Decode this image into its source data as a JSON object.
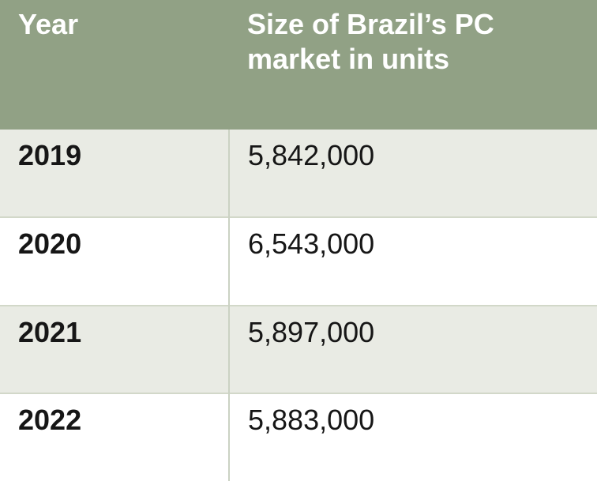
{
  "colors": {
    "header_bg": "#91A185",
    "header_text": "#FFFFFF",
    "row_alt_bg": "#E9EBE4",
    "row_bg": "#FFFFFF",
    "grid_line": "#CBD2C3",
    "body_text": "#161616"
  },
  "table": {
    "headers": [
      "Year",
      "Size of Brazil’s PC market in units"
    ],
    "rows": [
      [
        "2019",
        "5,842,000"
      ],
      [
        "2020",
        "6,543,000"
      ],
      [
        "2021",
        "5,897,000"
      ],
      [
        "2022",
        "5,883,000"
      ]
    ]
  },
  "chart_data": {
    "type": "table",
    "title": "Size of Brazil’s PC market in units",
    "columns": [
      "Year",
      "Size of Brazil’s PC market in units"
    ],
    "categories": [
      "2019",
      "2020",
      "2021",
      "2022"
    ],
    "values": [
      5842000,
      6543000,
      5897000,
      5883000
    ]
  }
}
